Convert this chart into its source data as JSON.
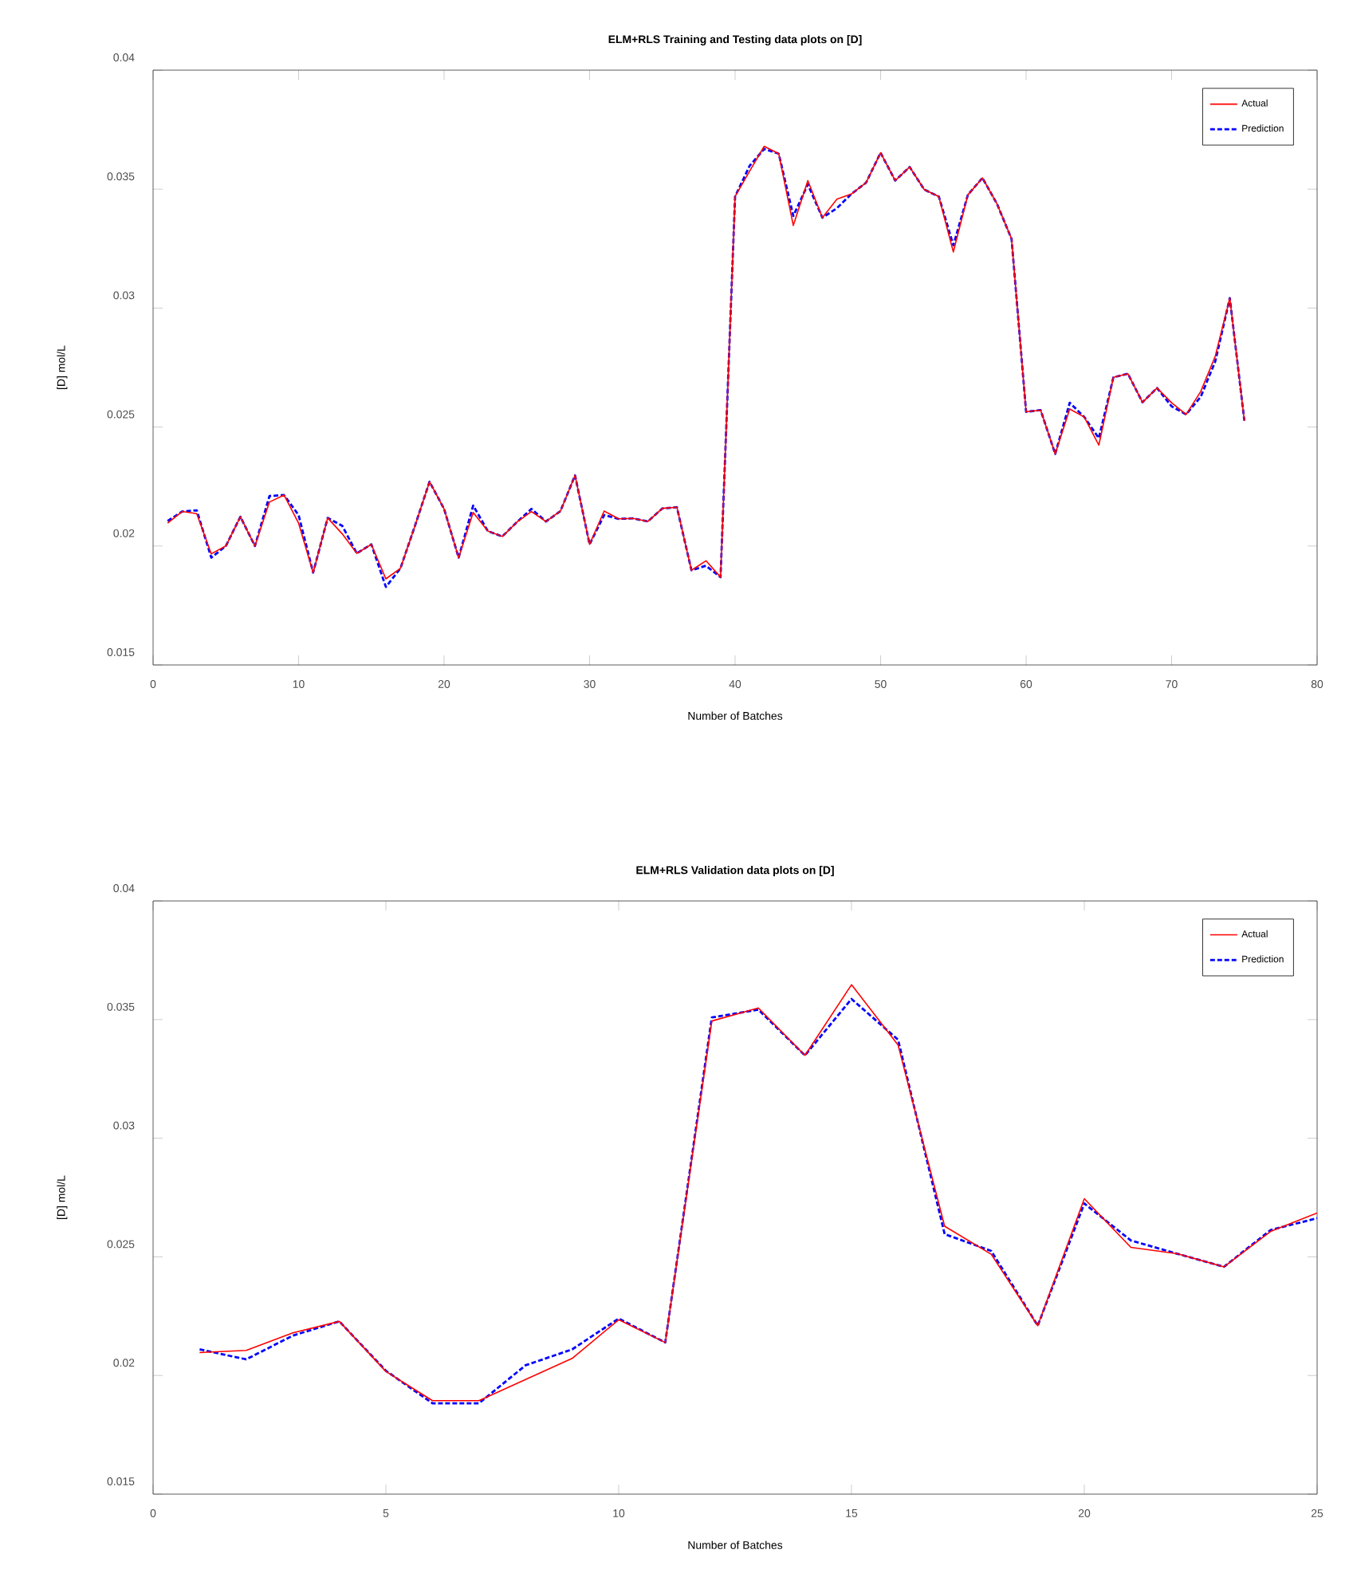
{
  "chart_data": [
    {
      "type": "line",
      "title": "ELM+RLS Training and Testing data plots on [D]",
      "xlabel": "Number of Batches",
      "ylabel": "[D] mol/L",
      "legend": "top right",
      "xlim": [
        0,
        80
      ],
      "ylim": [
        0.015,
        0.04
      ],
      "xticks": [
        0,
        10,
        20,
        30,
        40,
        50,
        60,
        70,
        80
      ],
      "yticks": [
        0.015,
        0.02,
        0.025,
        0.03,
        0.035,
        0.04
      ],
      "x": [
        1,
        2,
        3,
        4,
        5,
        6,
        7,
        8,
        9,
        10,
        11,
        12,
        13,
        14,
        15,
        16,
        17,
        18,
        19,
        20,
        21,
        22,
        23,
        24,
        25,
        26,
        27,
        28,
        29,
        30,
        31,
        32,
        33,
        34,
        35,
        36,
        37,
        38,
        39,
        40,
        41,
        42,
        43,
        44,
        45,
        46,
        47,
        48,
        49,
        50,
        51,
        52,
        53,
        54,
        55,
        56,
        57,
        58,
        59,
        60,
        61,
        62,
        63,
        64,
        65,
        66,
        67,
        68,
        69,
        70,
        71,
        72,
        73,
        74,
        75
      ],
      "series": [
        {
          "name": "Actual",
          "color": "#ff0000",
          "line_style": "solid",
          "values": [
            0.02096,
            0.02145,
            0.02136,
            0.01967,
            0.02,
            0.02123,
            0.02,
            0.02185,
            0.02214,
            0.02096,
            0.01888,
            0.02118,
            0.02051,
            0.01969,
            0.02007,
            0.01862,
            0.01906,
            0.02085,
            0.0227,
            0.02156,
            0.01951,
            0.02141,
            0.02063,
            0.0204,
            0.021,
            0.02145,
            0.02103,
            0.02147,
            0.02297,
            0.02007,
            0.02147,
            0.02114,
            0.02116,
            0.02103,
            0.02158,
            0.02163,
            0.01898,
            0.01938,
            0.01869,
            0.03469,
            0.03576,
            0.0368,
            0.03649,
            0.03347,
            0.03536,
            0.0338,
            0.03458,
            0.0348,
            0.03527,
            0.03653,
            0.03536,
            0.03593,
            0.03498,
            0.03469,
            0.03236,
            0.03476,
            0.03547,
            0.03438,
            0.03291,
            0.02564,
            0.02571,
            0.02387,
            0.02576,
            0.02542,
            0.02424,
            0.02709,
            0.02724,
            0.02604,
            0.02664,
            0.02602,
            0.02553,
            0.02649,
            0.02798,
            0.03042,
            0.02527
          ]
        },
        {
          "name": "Prediction",
          "color": "#0000ff",
          "line_style": "dashed",
          "values": [
            0.02105,
            0.02145,
            0.0215,
            0.01951,
            0.02,
            0.02123,
            0.02,
            0.0221,
            0.02214,
            0.0213,
            0.01888,
            0.02118,
            0.02085,
            0.01969,
            0.02007,
            0.01828,
            0.01906,
            0.02085,
            0.0227,
            0.02156,
            0.01951,
            0.0217,
            0.02063,
            0.0204,
            0.021,
            0.02156,
            0.02103,
            0.02147,
            0.02297,
            0.02007,
            0.0213,
            0.02114,
            0.02116,
            0.02103,
            0.02158,
            0.02163,
            0.01898,
            0.01917,
            0.01869,
            0.03469,
            0.03598,
            0.03669,
            0.03649,
            0.03387,
            0.0352,
            0.0338,
            0.0342,
            0.0348,
            0.03527,
            0.03653,
            0.03536,
            0.03593,
            0.03498,
            0.03469,
            0.03264,
            0.03476,
            0.03547,
            0.03438,
            0.03291,
            0.02564,
            0.02571,
            0.02387,
            0.02602,
            0.02542,
            0.02453,
            0.02709,
            0.02724,
            0.02604,
            0.02664,
            0.02587,
            0.02553,
            0.02627,
            0.02776,
            0.03042,
            0.02527
          ]
        }
      ]
    },
    {
      "type": "line",
      "title": "ELM+RLS Validation data plots on [D]",
      "xlabel": "Number of Batches",
      "ylabel": "[D] mol/L",
      "legend": "top right",
      "xlim": [
        0,
        25
      ],
      "ylim": [
        0.015,
        0.04
      ],
      "xticks": [
        0,
        5,
        10,
        15,
        20,
        25
      ],
      "yticks": [
        0.015,
        0.02,
        0.025,
        0.03,
        0.035,
        0.04
      ],
      "x": [
        1,
        2,
        3,
        4,
        5,
        6,
        7,
        8,
        9,
        10,
        11,
        12,
        13,
        14,
        15,
        16,
        17,
        18,
        19,
        20,
        21,
        22,
        23,
        24,
        25
      ],
      "series": [
        {
          "name": "Actual",
          "color": "#ff0000",
          "line_style": "solid",
          "values": [
            0.02097,
            0.02106,
            0.0218,
            0.02228,
            0.02017,
            0.01894,
            0.01894,
            0.01983,
            0.02072,
            0.02235,
            0.02139,
            0.03494,
            0.03549,
            0.03349,
            0.03647,
            0.03393,
            0.02629,
            0.02511,
            0.0221,
            0.02745,
            0.0254,
            0.02513,
            0.02458,
            0.02607,
            0.02685
          ]
        },
        {
          "name": "Prediction",
          "color": "#0000ff",
          "line_style": "dashed",
          "values": [
            0.0211,
            0.02068,
            0.02168,
            0.02228,
            0.0202,
            0.01883,
            0.01883,
            0.02043,
            0.0211,
            0.0224,
            0.02139,
            0.03509,
            0.03542,
            0.03349,
            0.03587,
            0.03415,
            0.02596,
            0.02525,
            0.0221,
            0.02725,
            0.02569,
            0.02513,
            0.02458,
            0.02613,
            0.02663
          ]
        }
      ]
    }
  ]
}
